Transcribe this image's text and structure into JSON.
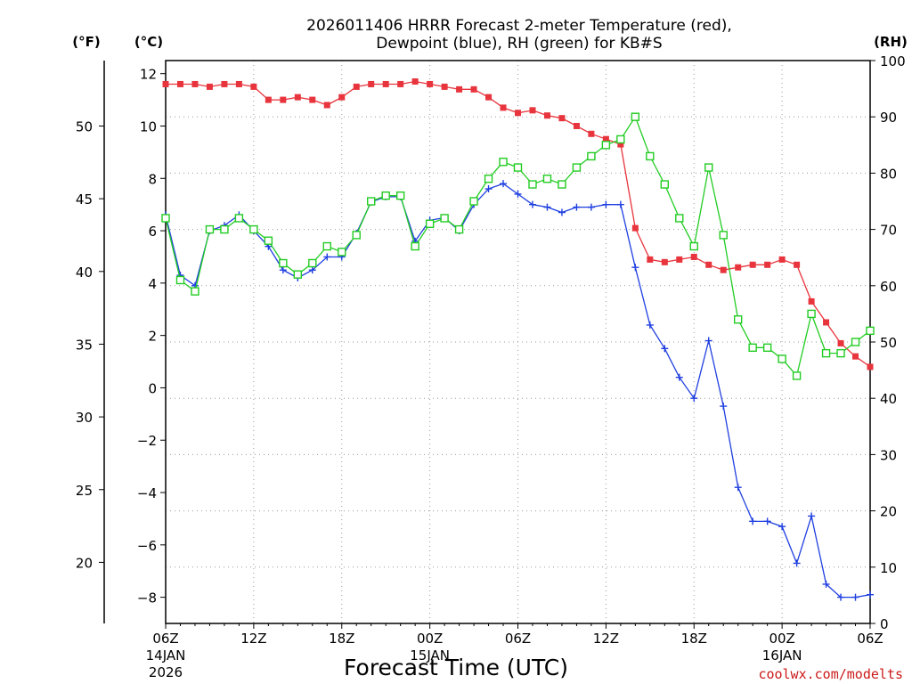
{
  "header": {
    "title_line1": "2026011406 HRRR Forecast 2-meter Temperature (red),",
    "title_line2": "Dewpoint (blue), RH (green) for KB#S"
  },
  "units": {
    "left_outer": "(°F)",
    "left_inner": "(°C)",
    "right": "(RH)"
  },
  "footer": {
    "xlabel": "Forecast Time (UTC)",
    "credit": "coolwx.com/modelts"
  },
  "chart_data": {
    "type": "line",
    "title": "2026011406 HRRR Forecast 2-meter Temperature (red), Dewpoint (blue), RH (green) for KB#S",
    "xlabel": "Forecast Time (UTC)",
    "x": [
      0,
      1,
      2,
      3,
      4,
      5,
      6,
      7,
      8,
      9,
      10,
      11,
      12,
      13,
      14,
      15,
      16,
      17,
      18,
      19,
      20,
      21,
      22,
      23,
      24,
      25,
      26,
      27,
      28,
      29,
      30,
      31,
      32,
      33,
      34,
      35,
      36,
      37,
      38,
      39,
      40,
      41,
      42,
      43,
      44,
      45,
      46,
      47,
      48
    ],
    "x_unit": "forecast hour from 06Z 14JAN 2026",
    "xlim": [
      0,
      48
    ],
    "x_ticks": [
      {
        "hour": 0,
        "label": "06Z",
        "sub1": "14JAN",
        "sub2": "2026"
      },
      {
        "hour": 6,
        "label": "12Z"
      },
      {
        "hour": 12,
        "label": "18Z"
      },
      {
        "hour": 18,
        "label": "00Z",
        "sub1": "15JAN"
      },
      {
        "hour": 24,
        "label": "06Z"
      },
      {
        "hour": 30,
        "label": "12Z"
      },
      {
        "hour": 36,
        "label": "18Z"
      },
      {
        "hour": 42,
        "label": "00Z",
        "sub1": "16JAN"
      },
      {
        "hour": 48,
        "label": "06Z"
      }
    ],
    "y_celsius": {
      "lim": [
        -9,
        12.5
      ],
      "ticks": [
        -8,
        -6,
        -4,
        -2,
        0,
        2,
        4,
        6,
        8,
        10,
        12
      ]
    },
    "y_fahrenheit": {
      "ticks": [
        20,
        25,
        30,
        35,
        40,
        45,
        50
      ]
    },
    "y_rh": {
      "lim": [
        0,
        100
      ],
      "ticks": [
        0,
        10,
        20,
        30,
        40,
        50,
        60,
        70,
        80,
        90,
        100
      ]
    },
    "grid": true,
    "series": [
      {
        "name": "Temperature",
        "axis": "celsius",
        "color": "#e8343c",
        "marker": "filled-square",
        "values": [
          11.6,
          11.6,
          11.6,
          11.5,
          11.6,
          11.6,
          11.5,
          11.0,
          11.0,
          11.1,
          11.0,
          10.8,
          11.1,
          11.5,
          11.6,
          11.6,
          11.6,
          11.7,
          11.6,
          11.5,
          11.4,
          11.4,
          11.1,
          10.7,
          10.5,
          10.6,
          10.4,
          10.3,
          10.0,
          9.7,
          9.5,
          9.3,
          6.1,
          4.9,
          4.8,
          4.9,
          5.0,
          4.7,
          4.5,
          4.6,
          4.7,
          4.7,
          4.9,
          4.7,
          3.3,
          2.5,
          1.7,
          1.2,
          0.8
        ]
      },
      {
        "name": "Dewpoint",
        "axis": "celsius",
        "color": "#1f3fe0",
        "marker": "plus",
        "values": [
          6.6,
          4.3,
          3.9,
          6.0,
          6.2,
          6.6,
          6.0,
          5.4,
          4.5,
          4.2,
          4.5,
          5.0,
          5.0,
          5.9,
          7.1,
          7.3,
          7.3,
          5.6,
          6.4,
          6.5,
          6.0,
          7.0,
          7.6,
          7.8,
          7.4,
          7.0,
          6.9,
          6.7,
          6.9,
          6.9,
          7.0,
          7.0,
          4.6,
          2.4,
          1.5,
          0.4,
          -0.4,
          1.8,
          -0.7,
          -3.8,
          -5.1,
          -5.1,
          -5.3,
          -6.7,
          -4.9,
          -7.5,
          -8.0,
          -8.0,
          -7.9
        ]
      },
      {
        "name": "RH",
        "axis": "rh",
        "color": "#22cc22",
        "marker": "open-square",
        "values": [
          72,
          61,
          59,
          70,
          70,
          72,
          70,
          68,
          64,
          62,
          64,
          67,
          66,
          69,
          75,
          76,
          76,
          67,
          71,
          72,
          70,
          75,
          79,
          82,
          81,
          78,
          79,
          78,
          81,
          83,
          85,
          86,
          90,
          83,
          78,
          72,
          67,
          81,
          69,
          54,
          49,
          49,
          47,
          44,
          55,
          48,
          48,
          50,
          52
        ]
      }
    ]
  }
}
